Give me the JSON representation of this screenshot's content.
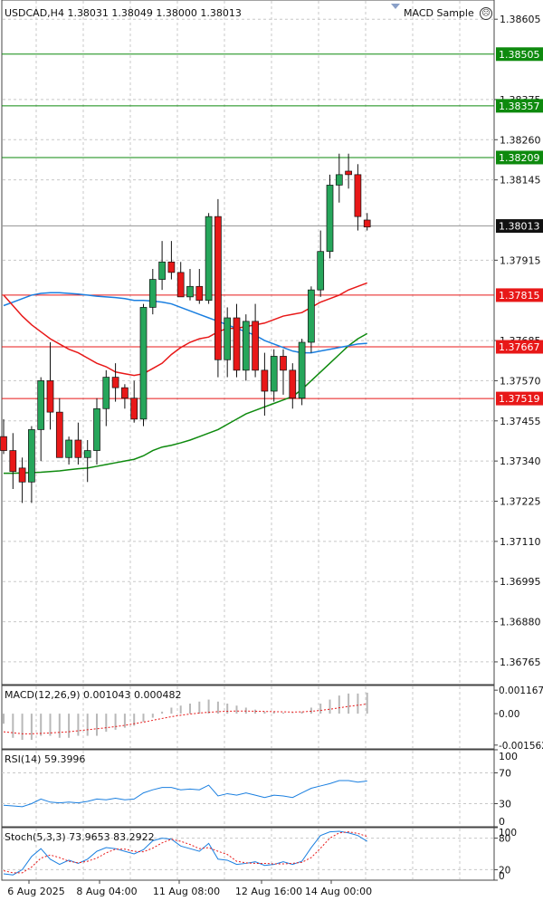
{
  "header": {
    "symbol_info": "USDCAD,H4  1.38031 1.38049 1.38000 1.38013",
    "indicator_name": "MACD Sample",
    "smiley_icon": "frown-face-icon"
  },
  "colors": {
    "bull": "#26a65b",
    "bear": "#e81818",
    "ma_fast": "#e81818",
    "ma_mid": "#1a7fe0",
    "ma_slow": "#0e8a0e",
    "level_green": "#0e8a0e",
    "level_red": "#e81818",
    "current": "#111111",
    "grid": "#c8c8c8"
  },
  "chart_data": [
    {
      "id": "price",
      "type": "candlestick",
      "title": "USDCAD,H4",
      "ylim": [
        1.367,
        1.3866
      ],
      "y_ticks": [
        "1.38605",
        "1.38375",
        "1.38260",
        "1.38145",
        "1.37915",
        "1.37685",
        "1.37570",
        "1.37455",
        "1.37340",
        "1.37225",
        "1.37110",
        "1.36995",
        "1.36880",
        "1.36765"
      ],
      "x_ticks": [
        "6 Aug 2025",
        "8 Aug 04:00",
        "11 Aug 08:00",
        "12 Aug 16:00",
        "14 Aug 00:00"
      ],
      "candles": [
        [
          1.3741,
          1.3746,
          1.3736,
          1.3737
        ],
        [
          1.3737,
          1.3742,
          1.3726,
          1.3731
        ],
        [
          1.3732,
          1.3735,
          1.3722,
          1.3728
        ],
        [
          1.3728,
          1.3744,
          1.3722,
          1.3743
        ],
        [
          1.3743,
          1.3758,
          1.3734,
          1.3757
        ],
        [
          1.3757,
          1.3768,
          1.3743,
          1.3748
        ],
        [
          1.3748,
          1.3752,
          1.3735,
          1.3735
        ],
        [
          1.3735,
          1.3741,
          1.3733,
          1.374
        ],
        [
          1.374,
          1.3745,
          1.3733,
          1.3735
        ],
        [
          1.3735,
          1.374,
          1.3728,
          1.3737
        ],
        [
          1.3737,
          1.3752,
          1.3733,
          1.3749
        ],
        [
          1.3749,
          1.376,
          1.3744,
          1.3758
        ],
        [
          1.3758,
          1.3762,
          1.3751,
          1.3755
        ],
        [
          1.3755,
          1.3756,
          1.3749,
          1.3752
        ],
        [
          1.3752,
          1.3757,
          1.3745,
          1.3746
        ],
        [
          1.3746,
          1.3779,
          1.3744,
          1.3778
        ],
        [
          1.3778,
          1.3789,
          1.3776,
          1.3786
        ],
        [
          1.3786,
          1.3797,
          1.3783,
          1.3791
        ],
        [
          1.3791,
          1.3797,
          1.3786,
          1.3788
        ],
        [
          1.3788,
          1.3791,
          1.3781,
          1.3781
        ],
        [
          1.3781,
          1.3789,
          1.378,
          1.3784
        ],
        [
          1.3784,
          1.3789,
          1.3779,
          1.378
        ],
        [
          1.378,
          1.3805,
          1.3779,
          1.3804
        ],
        [
          1.3804,
          1.3809,
          1.3758,
          1.3763
        ],
        [
          1.3763,
          1.3778,
          1.3758,
          1.3775
        ],
        [
          1.3775,
          1.3779,
          1.3758,
          1.376
        ],
        [
          1.376,
          1.3776,
          1.3757,
          1.3774
        ],
        [
          1.3774,
          1.3779,
          1.3758,
          1.376
        ],
        [
          1.376,
          1.3765,
          1.3747,
          1.3754
        ],
        [
          1.3754,
          1.3766,
          1.3751,
          1.3764
        ],
        [
          1.3764,
          1.3766,
          1.3753,
          1.376
        ],
        [
          1.376,
          1.3762,
          1.3749,
          1.3752
        ],
        [
          1.3752,
          1.3769,
          1.375,
          1.3768
        ],
        [
          1.3768,
          1.3784,
          1.3765,
          1.3783
        ],
        [
          1.3783,
          1.38,
          1.3781,
          1.3794
        ],
        [
          1.3794,
          1.3816,
          1.3792,
          1.3813
        ],
        [
          1.3813,
          1.3822,
          1.3808,
          1.3816
        ],
        [
          1.3817,
          1.3822,
          1.3812,
          1.3816
        ],
        [
          1.3816,
          1.3819,
          1.38,
          1.3804
        ],
        [
          1.3803,
          1.3805,
          1.38,
          1.3801
        ]
      ],
      "ma_fast": [
        1.37815,
        1.37785,
        1.37755,
        1.3773,
        1.3771,
        1.3769,
        1.37675,
        1.3766,
        1.3765,
        1.37635,
        1.3762,
        1.3761,
        1.37595,
        1.3759,
        1.37585,
        1.3759,
        1.37605,
        1.3762,
        1.37645,
        1.37665,
        1.3768,
        1.3769,
        1.37695,
        1.3771,
        1.3772,
        1.3772,
        1.37725,
        1.3773,
        1.37735,
        1.37745,
        1.37755,
        1.3776,
        1.37765,
        1.3778,
        1.37795,
        1.37805,
        1.37815,
        1.3783,
        1.3784,
        1.3785
      ],
      "ma_mid": [
        1.37785,
        1.37795,
        1.37805,
        1.37815,
        1.3782,
        1.37822,
        1.37822,
        1.3782,
        1.37818,
        1.37815,
        1.37812,
        1.3781,
        1.37808,
        1.37805,
        1.378,
        1.378,
        1.37798,
        1.37795,
        1.3779,
        1.3778,
        1.3777,
        1.3776,
        1.3775,
        1.3774,
        1.3773,
        1.3772,
        1.3771,
        1.377,
        1.37685,
        1.37675,
        1.37665,
        1.37655,
        1.3765,
        1.3765,
        1.37655,
        1.3766,
        1.37665,
        1.3767,
        1.37675,
        1.37677
      ],
      "ma_slow": [
        1.37305,
        1.37305,
        1.37306,
        1.37307,
        1.37308,
        1.3731,
        1.37312,
        1.37315,
        1.37318,
        1.3732,
        1.37325,
        1.3733,
        1.37335,
        1.3734,
        1.37345,
        1.37355,
        1.3737,
        1.3738,
        1.37385,
        1.37392,
        1.374,
        1.3741,
        1.3742,
        1.3743,
        1.37445,
        1.3746,
        1.37475,
        1.37485,
        1.37495,
        1.37505,
        1.37515,
        1.37525,
        1.37545,
        1.3757,
        1.37595,
        1.3762,
        1.37645,
        1.3767,
        1.3769,
        1.37705
      ],
      "levels": [
        {
          "value": "1.38505",
          "price": 1.38505,
          "color": "green"
        },
        {
          "value": "1.38357",
          "price": 1.38357,
          "color": "green"
        },
        {
          "value": "1.38209",
          "price": 1.38209,
          "color": "green"
        },
        {
          "value": "1.37815",
          "price": 1.37815,
          "color": "red"
        },
        {
          "value": "1.37667",
          "price": 1.37667,
          "color": "red"
        },
        {
          "value": "1.37519",
          "price": 1.37519,
          "color": "red"
        }
      ],
      "current": {
        "value": "1.38013",
        "price": 1.38013
      }
    },
    {
      "id": "macd",
      "type": "bar",
      "title": "MACD(12,26,9) 0.001043 0.000482",
      "ylim": [
        -0.00175,
        0.0014
      ],
      "y_ticks": [
        {
          "label": "0.001167",
          "value": 0.001167
        },
        {
          "label": "0.00",
          "value": 0
        },
        {
          "label": "-0.001562",
          "value": -0.001562
        }
      ],
      "histogram": [
        -0.0005,
        -0.0012,
        -0.0013,
        -0.0013,
        -0.0011,
        -0.0011,
        -0.0012,
        -0.0012,
        -0.0011,
        -0.0011,
        -0.0011,
        -0.0009,
        -0.0008,
        -0.0007,
        -0.0006,
        -0.0004,
        -0.0002,
        0.0001,
        0.0003,
        0.0004,
        0.0005,
        0.0006,
        0.0007,
        0.0006,
        0.0005,
        0.0004,
        0.0003,
        0.0002,
        0.0001,
        0.0001,
        5e-05,
        3e-05,
        0.0001,
        0.0003,
        0.0005,
        0.0007,
        0.0009,
        0.001,
        0.001,
        0.001043
      ],
      "signal": [
        -0.0009,
        -0.00095,
        -0.001,
        -0.001,
        -0.00098,
        -0.00096,
        -0.00093,
        -0.0009,
        -0.00085,
        -0.0008,
        -0.00075,
        -0.0007,
        -0.00064,
        -0.00058,
        -0.0005,
        -0.00042,
        -0.00033,
        -0.00024,
        -0.00015,
        -8e-05,
        -2e-05,
        3e-05,
        7e-05,
        0.0001,
        0.00012,
        0.00013,
        0.00013,
        0.00012,
        0.00011,
        0.0001,
        9e-05,
        8e-05,
        9e-05,
        0.00012,
        0.00016,
        0.00022,
        0.00029,
        0.00036,
        0.00042,
        0.000482
      ]
    },
    {
      "id": "rsi",
      "type": "line",
      "title": "RSI(14) 59.3996",
      "ylim": [
        0,
        100
      ],
      "y_ticks": [
        {
          "label": "100",
          "value": 100
        },
        {
          "label": "70",
          "value": 70
        },
        {
          "label": "30",
          "value": 30
        },
        {
          "label": "0",
          "value": 0
        }
      ],
      "values": [
        28,
        27,
        26,
        30,
        36,
        32,
        31,
        32,
        31,
        33,
        36,
        35,
        37,
        35,
        36,
        44,
        48,
        51,
        51,
        48,
        49,
        48,
        54,
        40,
        43,
        41,
        44,
        41,
        38,
        41,
        40,
        38,
        44,
        50,
        53,
        56,
        60,
        60,
        58,
        59.3996
      ]
    },
    {
      "id": "stoch",
      "type": "line",
      "title": "Stoch(5,3,3) 73.9653 83.2922",
      "ylim": [
        0,
        100
      ],
      "y_ticks": [
        {
          "label": "100",
          "value": 100
        },
        {
          "label": "80",
          "value": 80
        },
        {
          "label": "20",
          "value": 20
        },
        {
          "label": "0",
          "value": 0
        }
      ],
      "k": [
        12,
        10,
        20,
        45,
        60,
        40,
        30,
        38,
        32,
        40,
        55,
        62,
        60,
        55,
        50,
        58,
        75,
        80,
        78,
        65,
        60,
        55,
        70,
        40,
        38,
        30,
        32,
        35,
        28,
        30,
        35,
        30,
        36,
        62,
        85,
        92,
        93,
        90,
        85,
        73.9653
      ],
      "d": [
        18,
        14,
        14,
        25,
        42,
        48,
        43,
        36,
        33,
        36,
        42,
        52,
        59,
        59,
        55,
        54,
        61,
        71,
        78,
        74,
        68,
        60,
        62,
        55,
        49,
        36,
        33,
        32,
        32,
        31,
        31,
        32,
        34,
        43,
        61,
        80,
        90,
        92,
        89,
        83.2922
      ]
    }
  ]
}
